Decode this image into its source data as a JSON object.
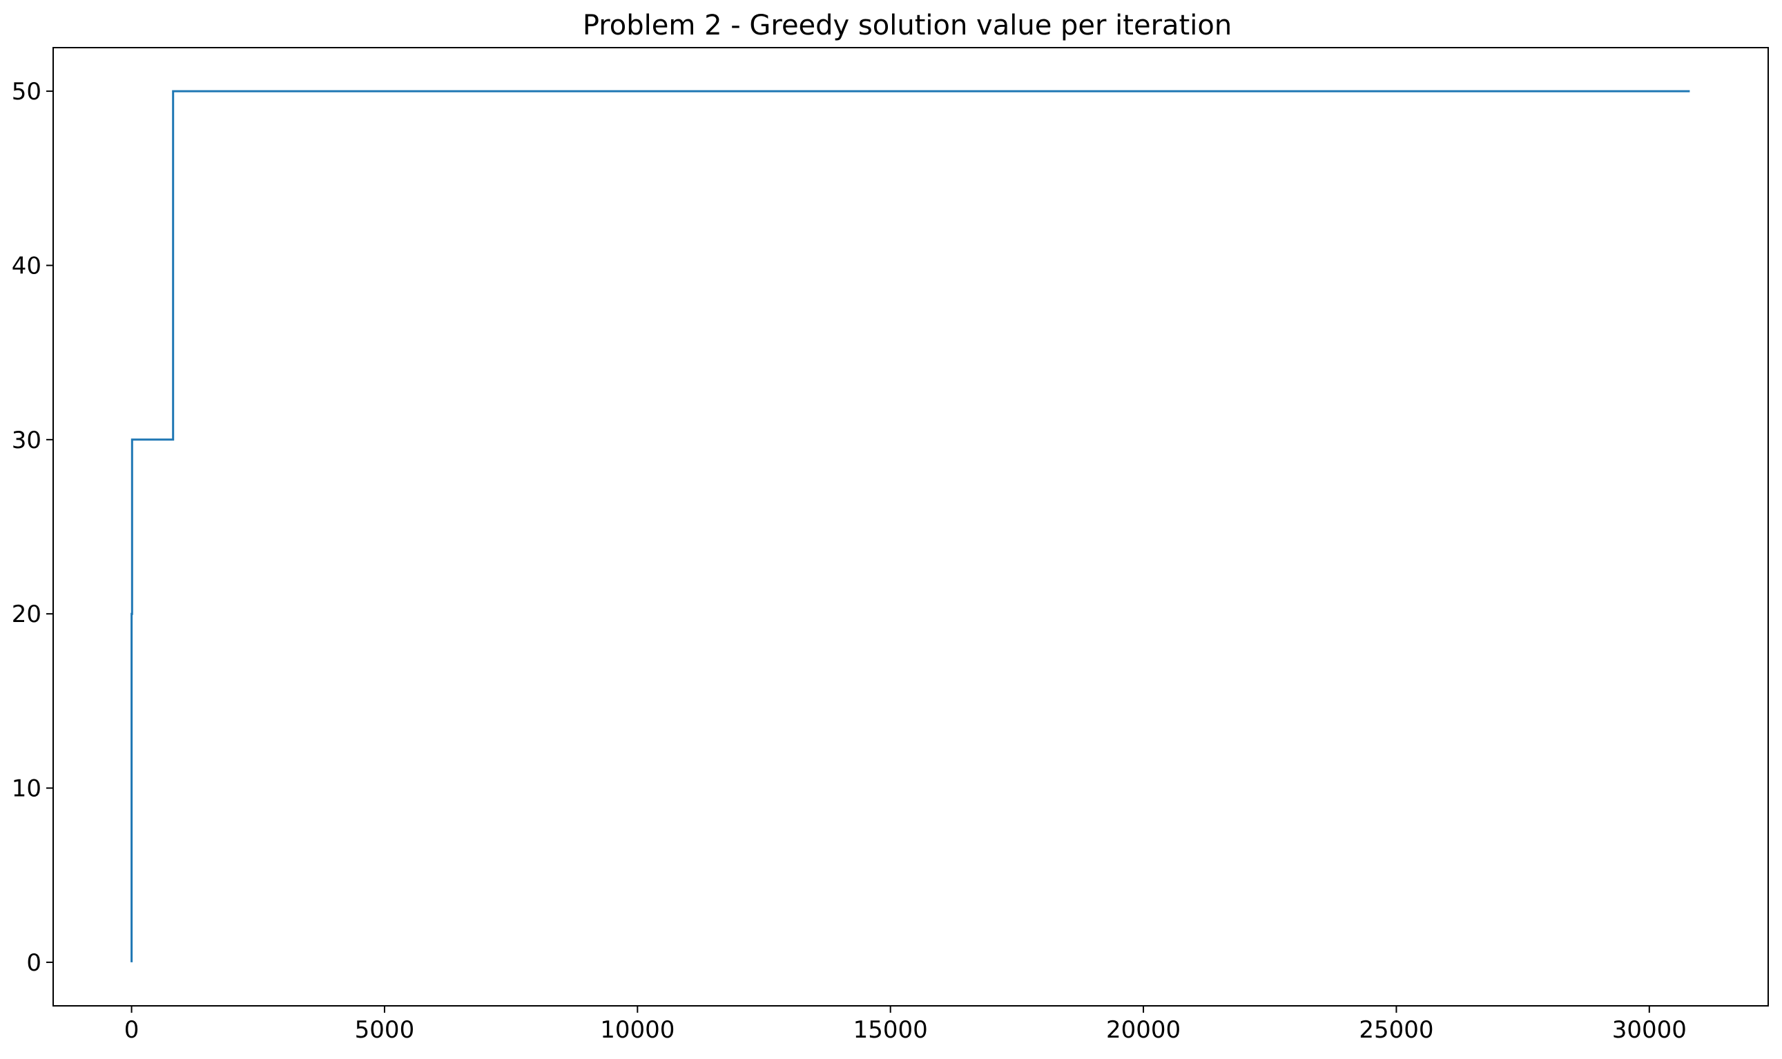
{
  "chart_data": {
    "type": "line",
    "title": "Problem 2 - Greedy solution value per iteration",
    "xlabel": "",
    "ylabel": "",
    "xlim": [
      -1550,
      32350
    ],
    "ylim": [
      -2.5,
      52.5
    ],
    "xticks": [
      0,
      5000,
      10000,
      15000,
      20000,
      25000,
      30000
    ],
    "yticks": [
      0,
      10,
      20,
      30,
      40,
      50
    ],
    "xtick_labels": [
      "0",
      "5000",
      "10000",
      "15000",
      "20000",
      "25000",
      "30000"
    ],
    "ytick_labels": [
      "0",
      "10",
      "20",
      "30",
      "40",
      "50"
    ],
    "grid": false,
    "series": [
      {
        "color": "#1f77b4",
        "x": [
          0,
          0,
          10,
          10,
          20,
          20,
          820,
          820,
          30800
        ],
        "y": [
          0,
          20,
          20,
          30,
          30,
          30,
          30,
          50,
          50
        ]
      }
    ]
  }
}
